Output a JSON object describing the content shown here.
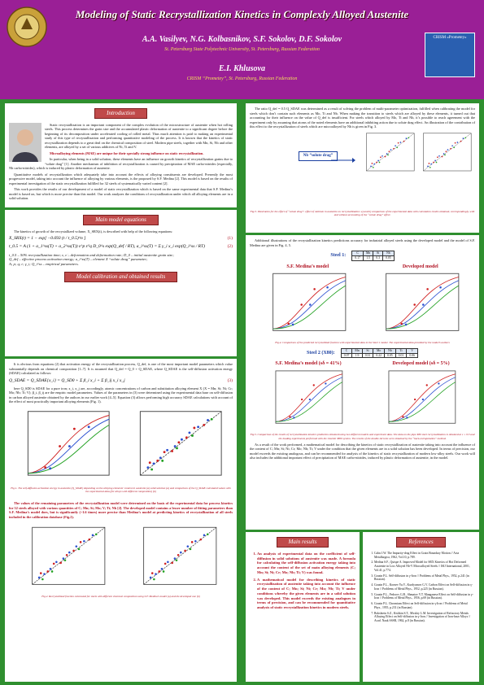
{
  "header": {
    "title": "Modeling of Static Recrystallization Kinetics in Complexly Alloyed Austenite",
    "authors": "A.A. Vasilyev, N.G. Kolbasnikov, S.F. Sokolov, D.F. Sokolov",
    "affiliation1": "St. Petersburg State Polytechnic University, St. Petersburg, Russian Federation",
    "author2": "E.I. Khlusova",
    "affiliation2": "CRISM “Prometey”, St. Petersburg, Russian Federation",
    "badge": "CRISM «Prometey»"
  },
  "intro": {
    "heading": "Introduction",
    "paragraphs": [
      "Static recrystallization is an important component of the complex evolution of the microstructure of austenite when hot rolling steels. This process determines the grain size and the accumulated plastic deformation of austenite to a significant degree before the beginning of its decomposition under accelerated cooling of rolled metal. Thus much attention is paid to making an experimental study of this type of recrystallization and performing quantitative modeling of the process. It is known that the kinetics of static recrystallization depends to a great deal on the chemical composition of steel. Modern pipe steels, together with Mn, Si, Nb and other elements, are alloyed by a set of various additives of Ni, Ti and V.",
      "Microalloying elements (MAE) are unique for their specially strong influence on static recrystallization.",
      "In particular, when being in a solid solution, these elements have an influence on growth kinetics of recrystallization grains due to “solute drag” [1]. Another mechanism of inhibition of recrystallization is caused by precipitation of MAE carbo-nitrides (especially, Nb carbo-nitrides), which is induced by plastic deformation of austenite.",
      "Quantitative models of recrystallization which adequately take into account the effects of alloying constituents are developed. Presently the most progressive model, taking into account the influence of alloying by various elements, is the proposed by S.F. Medina [2]. This model is based on the results of experimental investigation of the static recrystallization fulfilled for 32 steels of systematically varied content [2].",
      "This work provides the results of our development of a model of static recrystallization which is based on the same experimental data that S.F. Medina’s model is based on, but which is more precise than this model. Our work analyzes the conditions of recrystallization under which all alloying elements are in a solid solution."
    ]
  },
  "equations": {
    "heading": "Main model equations",
    "intro": "The kinetics of growth of the recrystallized volume, X_SRX(t), is described with help of the following equations:",
    "eq1": "X_SRX(t) = 1 − exp[ −0.693 (t / t_0.5)^n ]",
    "eq1_num": "(1)",
    "eq2": "t_0.5 = A (1 + a_1^ss(T) + a_2^ss(T)) ε^p ε̇^q D_0^s exp(Q_def / RT),   a_i^ss(T) = Σ γ_i x_i exp(Q_i^ss / RT)",
    "eq2_num": "(2)",
    "params": [
      "t_0.5 – 50% recrystallization time;  ε, ε̇ – deformation and deformation rate;  D_0 – initial austenite grain size;",
      "Q_def – effective process activation energy;  a_i^ss(T) – element X “solute drag” parameter;",
      "A; p; q; r; γ_i; Q_i^ss – empirical parameters."
    ]
  },
  "calibration": {
    "heading": "Model calibration and obtained results",
    "p1": "It is obvious from equations (2) that activation energy of the recrystallization process, Q_def, is one of the most important model parameters which value substantially depends on chemical composition [1–7]. It is assumed that Q_def = Q_0 + Q_SDAE, where Q_SDAE is the self-diffusion activation energy (SDAE) calculated as follows:",
    "eq3": "Q_SDAE = Q_SDAE{x_i} = Q_SD0 + Σ β_i x_i + Σ β_ij x_i x_j",
    "eq3_num": "(3)",
    "p2": "here Q_SD0 is SDAE for a pure iron; x_i, x_j are, accordingly, atomic concentrations of carbon and substitution alloying element X (X = Mn; Si; Ni; Cr; Mo; Nb; Ti; V); β_i, β_ij are the empiric model parameters. Values of the parameters in (3) were determined using the experimental data base on self-diffusion in carbon alloyed austenite obtained by the authors in our earlier work [4–5]. Equation (3) allows performing high accuracy SDAE calculations with account of the effect of most practically important alloying elements (Fig. 1).",
    "fig1_caption": "Fig.1. The self-diffusion activation energy in austenite (Q_SDAE) depending on the alloying elements’ content in austenite (a) solid solution (a) and comparison of the Q_SDAE calculated values with the experimental data (for alloys with different composition) (b)",
    "p3": "The values of the remaining parameters of the recrystallization model were determined on the basis of the experimental data for process kinetics for 32 steels alloyed with various quantities of C; Mn; Si; Mo; V; Ti; Nb [2]. The developed model contains a lesser number of fitting parameters than S.F. Medina’s model does, but is significantly (~1.6 times) more precise than Medina’s model at predicting kinetics of recrystallization of all steels included in the calibration database (Fig.2).",
    "fig2_caption": "Fig.2. Recrystallized fraction calculated for steels with different chemical composition using S.F. Medina’s model (a) and the developed one (b)"
  },
  "solute_drag": {
    "paragraph": "The ratio Q_def = 0.5 Q_SDAE was determined as a result of solving the problem of multi-parameter optimization, fulfilled when calibrating the model for steels which don’t contain such elements as Mo, Ti and Nb. When making the transition to steels which are alloyed by these elements, it turned out that accounting for their influence on the value of Q_def is insufficient. For steels which alloyed by Mo, Ti and Nb, it’s possible to reach agreement with the experiment only by assuming that atoms of the noted elements have an additional inhibiting action due to solute drag effect. An illustration of the contribution of this effect to the recrystallization of steels which are microalloyed by Nb is given in Fig. 3.",
    "annotation": "Nb “solute drag”",
    "fig_caption": "Fig.3. Illustration for the effect of “solute drag”: effect of niobium in austenite on recrystallization: a) and b) comparison of the experimental data with calculation results obtained, correspondingly, with and without accounting of the “solute drag” effect."
  },
  "additional": {
    "paragraph": "Additional illustrations of the recrystallization kinetics predictions accuracy for industrial alloyed steels using the developed model and the model of S.F. Medina are given in Fig. 4, 5.",
    "steel1": {
      "label": "Steel 1:",
      "headers": [
        "C",
        "Mn",
        "Si",
        "Nb"
      ],
      "values": [
        "0.17",
        "1.5",
        "0.3",
        "0.05"
      ]
    },
    "medina_title": "S.F. Medina’s model",
    "developed_title": "Developed model",
    "fig3_caption": "Fig.4. Comparison of the predicted recrystallized fraction with experimental data in the Steel 1 model. The experimental data provided by the model’s authors",
    "steel2": {
      "label": "Steel 2 (X80):",
      "headers": [
        "C",
        "Mn",
        "Si",
        "Mo",
        "Nb",
        "Ti",
        "V"
      ],
      "values": [
        "0.07",
        "1.9",
        "0.31",
        "0.22",
        "0.05",
        "0.01",
        "0.06"
      ]
    },
    "medina2_title": "S.F. Medina’s model (sδ = 41%)",
    "developed2_title": "Developed model (sδ = 5%)",
    "fig4_caption": "Fig.5. Comparison of the results of recrystallization kinetics prediction obtained using two different models and experiment data. The data on the pipe X80 steel recrystallization is obtained at ε = 0.3 and the loading experiments performed with the Gleeble 3800 system. The results of the double-hit tests were obtained by the “back-extrapolation” method.",
    "paragraph2": "As a result of the work performed, a mathematical model for describing the kinetics of static recrystallization of austenite taking into account the influence of the content of C; Mn; Si; Ni; Cr; Mo; Nb; Ti; V under the condition that the given elements are in a solid solution has been developed. In terms of precision, our model exceeds the existing analogous, and can be recommended for analysis of the kinetics of static recrystallization of modern low-alloy steels. Our work will also includes the additional important effect of precipitation of MAE carbo-nitrides, induced by plastic deformation of austenite, in the model."
  },
  "results": {
    "heading": "Main results",
    "items": [
      "An analysis of experimental data on the coefficient of self-diffusion in solid solutions of austenite was made. A formula for calculating the self-diffusion activation energy taking into account the content of the set of main alloying elements (C; Mn; Si; Ni; Cr; Mo; Nb; Ti; V) was found.",
      "A mathematical model for describing kinetics of static recrystallization of austenite taking into account the influence of the content of C; Mn; Si; Ni; Cr; Mo; Nb; Ti; V under conditions whereby the given elements are in a solid solution was developed. This model exceeds the existing analogues in terms of precision, and can be recommended for quantitative analysis of static recrystallization kinetics in modern steels."
    ]
  },
  "references": {
    "heading": "References",
    "items": [
      "Cahn J.W. The Impurity-drag Effect in Grain Boundary Motion // Acta Metallurgica, 1962, Vol.10, p.789.",
      "Medina S.F., Quispe A. Improved Model for SRX Kinetics of Hot Deformed Austenite in Low Alloyed Nb-V Microalloyed Steels // ISIJ International, 2001, Vol.41, p.774.",
      "Gruzin P.L. Self-diffusion in γ-Iron // Problems of Metal Phys., 1952, p.241 (in Russian).",
      "Gruzin P.L., Kornev Yu.V., Kurdyumov G.V. Carbon Effect on Self-diffusion in γ-Iron // Problems of Metal Phys., 1952, p.225 (in Russian).",
      "Gruzin P.L., Fedorov G.B., Shmatov V.T. Manganese Effect on Self-diffusion in γ-Iron // Problems of Metal Phys., 1956, p.69 (in Russian).",
      "Gruzin P.L. Chromium Effect on Self-diffusion in γ-Iron // Problems of Metal Phys., 1955, p.231 (in Russian).",
      "Bokshtein S.Z., Kishkin S.T., Mirskiy L.M. Investigation of Refractory Metals Alloying Effect on Self-diffusion in γ-Iron // Investigation of Iron-base Alloys // Acad. Nauk SSSR, 1962, p.8 (in Russian)."
    ]
  }
}
